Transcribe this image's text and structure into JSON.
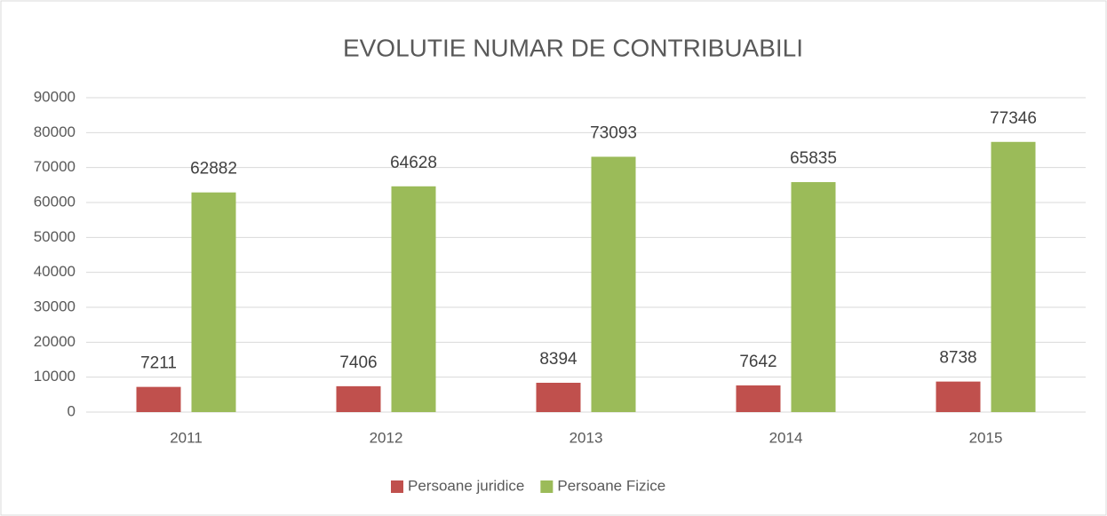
{
  "chart_data": {
    "type": "bar",
    "title": "EVOLUTIE NUMAR DE CONTRIBUABILI",
    "categories": [
      "2011",
      "2012",
      "2013",
      "2014",
      "2015"
    ],
    "series": [
      {
        "name": "Persoane juridice",
        "color": "#c0504d",
        "values": [
          7211,
          7406,
          8394,
          7642,
          8738
        ]
      },
      {
        "name": "Persoane Fizice",
        "color": "#9bbb59",
        "values": [
          62882,
          64628,
          73093,
          65835,
          77346
        ]
      }
    ],
    "ylim": [
      0,
      90000
    ],
    "yticks": [
      0,
      10000,
      20000,
      30000,
      40000,
      50000,
      60000,
      70000,
      80000,
      90000
    ],
    "grid": true,
    "legend": "bottom"
  }
}
